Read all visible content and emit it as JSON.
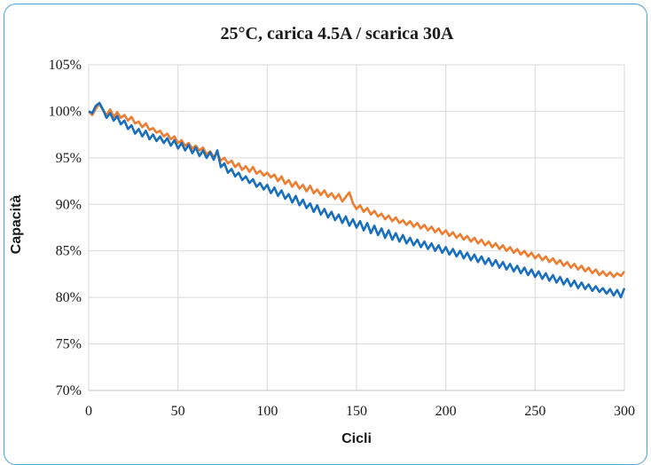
{
  "chart_data": {
    "type": "line",
    "title": "25°C, carica 4.5A / scarica 30A",
    "xlabel": "Cicli",
    "ylabel": "Capacità",
    "xlim": [
      0,
      300
    ],
    "ylim": [
      70,
      105
    ],
    "x_ticks": [
      0,
      50,
      100,
      150,
      200,
      250,
      300
    ],
    "y_ticks": [
      70,
      75,
      80,
      85,
      90,
      95,
      100,
      105
    ],
    "y_tick_labels": [
      "70%",
      "75%",
      "80%",
      "85%",
      "90%",
      "95%",
      "100%",
      "105%"
    ],
    "grid": true,
    "series": [
      {
        "color": "#ed7d31",
        "x": [
          0,
          2,
          4,
          6,
          8,
          10,
          12,
          14,
          16,
          18,
          20,
          22,
          24,
          26,
          28,
          30,
          32,
          34,
          36,
          38,
          40,
          42,
          44,
          46,
          48,
          50,
          52,
          54,
          56,
          58,
          60,
          62,
          64,
          66,
          68,
          70,
          72,
          74,
          76,
          78,
          80,
          82,
          84,
          86,
          88,
          90,
          92,
          94,
          96,
          98,
          100,
          102,
          104,
          106,
          108,
          110,
          112,
          114,
          116,
          118,
          120,
          122,
          124,
          126,
          128,
          130,
          132,
          134,
          136,
          138,
          140,
          142,
          144,
          146,
          148,
          150,
          152,
          154,
          156,
          158,
          160,
          162,
          164,
          166,
          168,
          170,
          172,
          174,
          176,
          178,
          180,
          182,
          184,
          186,
          188,
          190,
          192,
          194,
          196,
          198,
          200,
          202,
          204,
          206,
          208,
          210,
          212,
          214,
          216,
          218,
          220,
          222,
          224,
          226,
          228,
          230,
          232,
          234,
          236,
          238,
          240,
          242,
          244,
          246,
          248,
          250,
          252,
          254,
          256,
          258,
          260,
          262,
          264,
          266,
          268,
          270,
          272,
          274,
          276,
          278,
          280,
          282,
          284,
          286,
          288,
          290,
          292,
          294,
          296,
          298,
          300
        ],
        "values": [
          100.0,
          99.6,
          100.3,
          100.8,
          100.1,
          99.6,
          100.2,
          99.4,
          99.9,
          99.3,
          99.6,
          99.0,
          99.4,
          98.7,
          98.9,
          98.3,
          98.7,
          98.0,
          98.2,
          97.7,
          97.9,
          97.3,
          97.6,
          97.0,
          97.3,
          96.6,
          96.9,
          96.3,
          96.6,
          96.0,
          96.3,
          95.8,
          96.1,
          95.4,
          95.7,
          95.1,
          95.5,
          94.7,
          95.0,
          94.4,
          94.7,
          94.0,
          94.4,
          93.7,
          94.1,
          93.5,
          94.0,
          93.3,
          93.6,
          93.1,
          93.4,
          92.9,
          93.2,
          92.5,
          93.0,
          92.2,
          92.6,
          91.9,
          92.4,
          91.7,
          92.1,
          91.4,
          92.0,
          91.2,
          91.6,
          91.0,
          91.5,
          90.8,
          91.2,
          90.6,
          91.1,
          90.3,
          90.8,
          91.3,
          90.1,
          89.5,
          89.9,
          89.2,
          89.6,
          88.9,
          89.3,
          88.7,
          89.0,
          88.4,
          88.8,
          88.2,
          88.6,
          88.0,
          88.3,
          87.8,
          88.2,
          87.6,
          88.0,
          87.4,
          87.8,
          87.2,
          87.6,
          87.0,
          87.4,
          86.8,
          87.2,
          86.6,
          87.0,
          86.4,
          86.8,
          86.2,
          86.6,
          86.0,
          86.4,
          85.8,
          86.2,
          85.6,
          86.0,
          85.4,
          85.8,
          85.2,
          85.6,
          85.0,
          85.4,
          84.8,
          85.2,
          84.6,
          85.0,
          84.4,
          84.8,
          84.2,
          84.6,
          84.0,
          84.4,
          83.8,
          84.2,
          83.6,
          84.0,
          83.4,
          83.8,
          83.2,
          83.6,
          83.0,
          83.4,
          82.8,
          83.2,
          82.6,
          83.0,
          82.4,
          82.8,
          82.3,
          82.7,
          82.2,
          82.6,
          82.3,
          82.8
        ]
      },
      {
        "color": "#1a6fbd",
        "x": [
          0,
          2,
          4,
          6,
          8,
          10,
          12,
          14,
          16,
          18,
          20,
          22,
          24,
          26,
          28,
          30,
          32,
          34,
          36,
          38,
          40,
          42,
          44,
          46,
          48,
          50,
          52,
          54,
          56,
          58,
          60,
          62,
          64,
          66,
          68,
          70,
          72,
          74,
          76,
          78,
          80,
          82,
          84,
          86,
          88,
          90,
          92,
          94,
          96,
          98,
          100,
          102,
          104,
          106,
          108,
          110,
          112,
          114,
          116,
          118,
          120,
          122,
          124,
          126,
          128,
          130,
          132,
          134,
          136,
          138,
          140,
          142,
          144,
          146,
          148,
          150,
          152,
          154,
          156,
          158,
          160,
          162,
          164,
          166,
          168,
          170,
          172,
          174,
          176,
          178,
          180,
          182,
          184,
          186,
          188,
          190,
          192,
          194,
          196,
          198,
          200,
          202,
          204,
          206,
          208,
          210,
          212,
          214,
          216,
          218,
          220,
          222,
          224,
          226,
          228,
          230,
          232,
          234,
          236,
          238,
          240,
          242,
          244,
          246,
          248,
          250,
          252,
          254,
          256,
          258,
          260,
          262,
          264,
          266,
          268,
          270,
          272,
          274,
          276,
          278,
          280,
          282,
          284,
          286,
          288,
          290,
          292,
          294,
          296,
          298,
          300
        ],
        "values": [
          100.0,
          99.8,
          100.6,
          100.9,
          100.2,
          99.3,
          99.8,
          99.0,
          99.5,
          98.6,
          99.0,
          98.1,
          98.5,
          97.6,
          98.1,
          97.3,
          97.9,
          97.0,
          97.5,
          96.8,
          97.3,
          96.6,
          97.1,
          96.3,
          96.9,
          96.0,
          96.6,
          95.8,
          96.4,
          95.5,
          96.1,
          95.2,
          95.8,
          95.0,
          95.6,
          94.8,
          95.8,
          94.0,
          94.4,
          93.4,
          93.8,
          93.0,
          93.4,
          92.6,
          93.0,
          92.3,
          92.7,
          91.9,
          92.3,
          91.6,
          92.1,
          91.2,
          91.8,
          90.9,
          91.5,
          90.6,
          91.1,
          90.2,
          90.9,
          89.9,
          90.5,
          89.6,
          90.1,
          89.2,
          89.9,
          88.9,
          89.5,
          88.6,
          89.2,
          88.3,
          88.9,
          88.0,
          88.7,
          87.7,
          88.4,
          87.5,
          88.2,
          87.2,
          88.0,
          86.9,
          87.7,
          86.7,
          87.4,
          86.4,
          87.2,
          86.2,
          86.9,
          86.0,
          86.7,
          85.8,
          86.4,
          85.6,
          86.2,
          85.4,
          86.0,
          85.2,
          85.8,
          85.0,
          85.6,
          84.8,
          85.4,
          84.6,
          85.2,
          84.4,
          85.0,
          84.2,
          84.8,
          84.0,
          84.6,
          83.8,
          84.4,
          83.6,
          84.2,
          83.4,
          84.0,
          83.2,
          83.8,
          83.0,
          83.6,
          82.8,
          83.4,
          82.6,
          83.2,
          82.4,
          83.0,
          82.2,
          82.8,
          82.0,
          82.6,
          81.8,
          82.4,
          81.6,
          82.2,
          81.4,
          82.0,
          81.2,
          81.8,
          81.0,
          81.6,
          80.9,
          81.4,
          80.7,
          81.2,
          80.6,
          81.0,
          80.4,
          80.9,
          80.2,
          80.8,
          80.0,
          81.0
        ]
      }
    ]
  }
}
